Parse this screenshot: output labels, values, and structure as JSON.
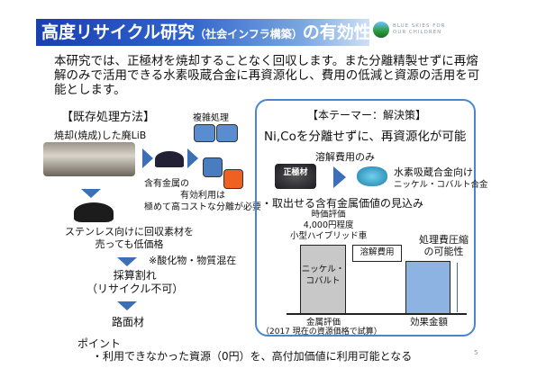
{
  "header": {
    "title_main": "高度リサイクル研究",
    "title_sub": "（社会インフラ構築）",
    "title_end": "の有効性",
    "logo_text": [
      "BLUE SKIES FOR",
      "OUR CHILDREN"
    ]
  },
  "intro": "本研究では、正極材を焼却することなく回収します。また分離精製せずに再熔解のみで活用できる水素吸蔵合金に再資源化し、費用の低減と資源の活用を可能とします。",
  "left": {
    "heading": "【既存処理方法】",
    "burned_lib": "焼却(焼成)した廃LiB",
    "complex": "複雑処理",
    "metal_note": [
      "含有金属の",
      "有効利用は",
      "極めて高コストな分離が必要"
    ],
    "stainless": [
      "ステンレス向けに回収素材を",
      "売っても低価格"
    ],
    "oxide_note": "※酸化物・物質混在",
    "unprofitable": [
      "採算割れ",
      "（リサイクル不可）"
    ],
    "road": "路面材"
  },
  "right": {
    "heading": "【本テーマー：解決策】",
    "headline": "Ni,Coを分離せずに、再資源化が可能",
    "dissolve_only": "溶解費用のみ",
    "cathode": "正極材",
    "alloy": [
      "水素吸蔵合金向け",
      "ニッケル・コバルト合金"
    ],
    "value_bullet": "・取出せる含有金属価値の見込み",
    "estimate": [
      "時価評価",
      "4,000円程度",
      "小型ハイブリッド車"
    ],
    "bar_nico": [
      "ニッケル・",
      "コバルト"
    ],
    "dissolve_cost": "溶解費用",
    "reduce": [
      "処理費圧縮",
      "の可能性"
    ],
    "metal_eval": "金属評価",
    "effect": "効果金額",
    "basis": "（2017 現在の資源価格で試算）"
  },
  "colors": {
    "accent": "#4a86d0",
    "gray_bar": "#c8c8c8",
    "blue_bar": "#8db3e2"
  },
  "point": {
    "label": "ポイント",
    "bullet": "・利用できなかった資源（0円）を、高付加価値に利用可能となる"
  },
  "page_number": "5"
}
